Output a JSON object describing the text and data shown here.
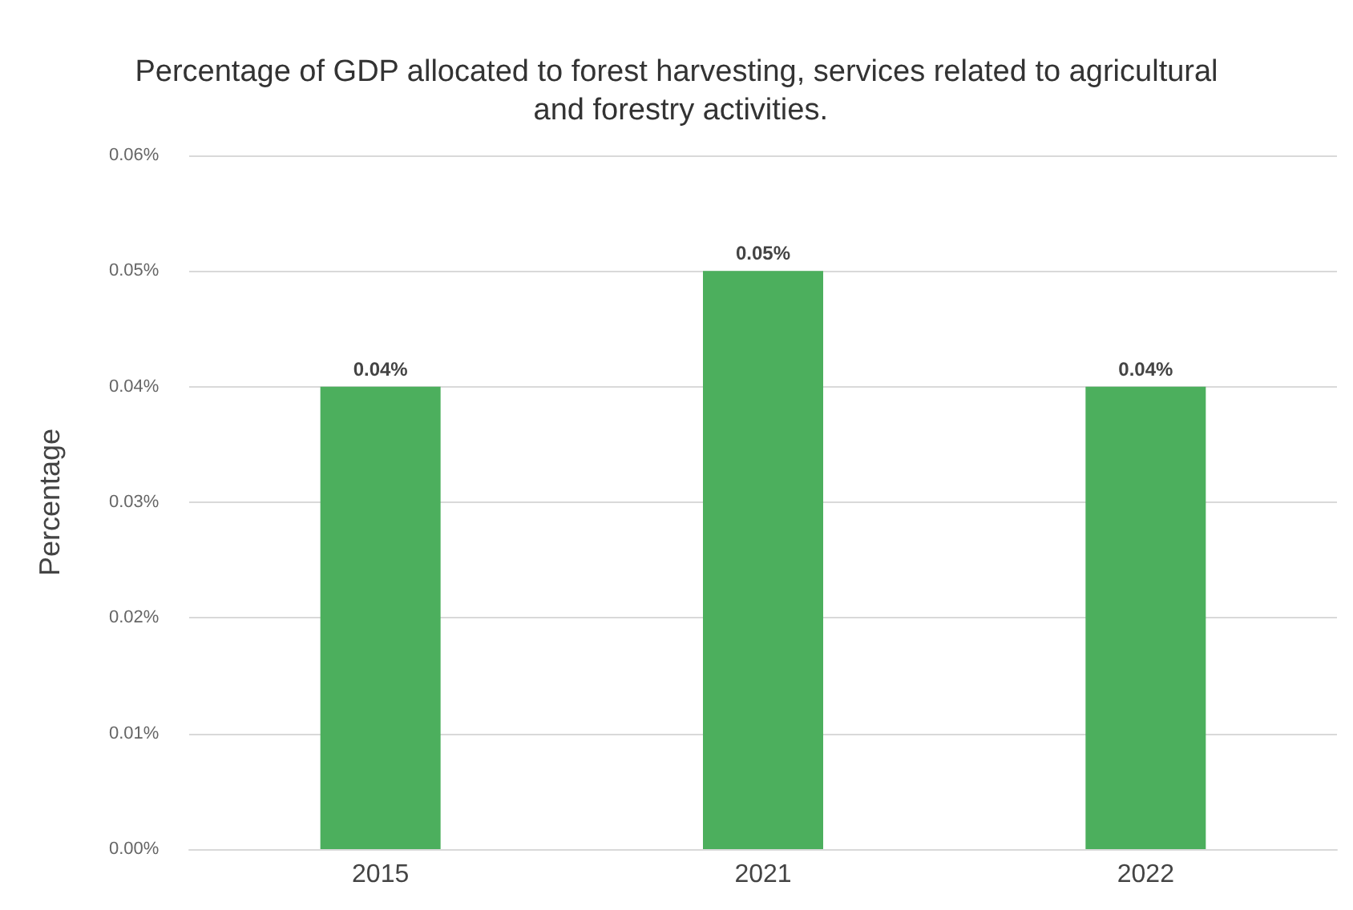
{
  "chart_data": {
    "type": "bar",
    "title": "Percentage of GDP allocated to forest harvesting, services related to agricultural and forestry activities.",
    "ylabel": "Percentage",
    "categories": [
      "2015",
      "2021",
      "2022"
    ],
    "values": [
      0.04,
      0.05,
      0.04
    ],
    "value_labels": [
      "0.04%",
      "0.05%",
      "0.04%"
    ],
    "color": "#4caf5d",
    "ylim": [
      0,
      0.06
    ],
    "yticks": [
      {
        "value": 0,
        "label": "0.00%"
      },
      {
        "value": 0.01,
        "label": "0.01%"
      },
      {
        "value": 0.02,
        "label": "0.02%"
      },
      {
        "value": 0.03,
        "label": "0.03%"
      },
      {
        "value": 0.04,
        "label": "0.04%"
      },
      {
        "value": 0.05,
        "label": "0.05%"
      },
      {
        "value": 0.06,
        "label": "0.06%"
      }
    ],
    "grid": "y"
  }
}
